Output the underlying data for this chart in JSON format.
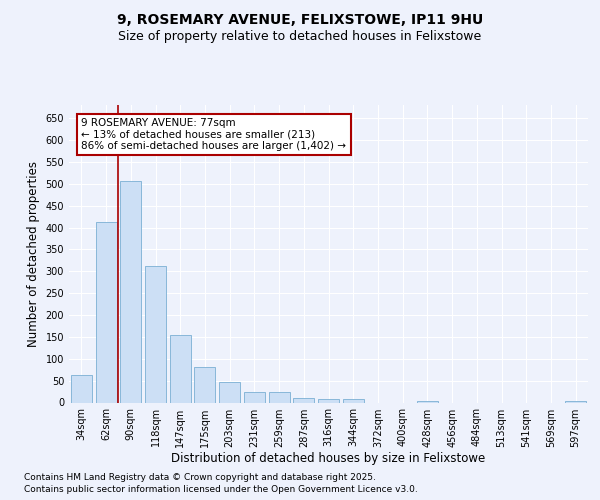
{
  "title": "9, ROSEMARY AVENUE, FELIXSTOWE, IP11 9HU",
  "subtitle": "Size of property relative to detached houses in Felixstowe",
  "xlabel": "Distribution of detached houses by size in Felixstowe",
  "ylabel": "Number of detached properties",
  "categories": [
    "34sqm",
    "62sqm",
    "90sqm",
    "118sqm",
    "147sqm",
    "175sqm",
    "203sqm",
    "231sqm",
    "259sqm",
    "287sqm",
    "316sqm",
    "344sqm",
    "372sqm",
    "400sqm",
    "428sqm",
    "456sqm",
    "484sqm",
    "513sqm",
    "541sqm",
    "569sqm",
    "597sqm"
  ],
  "values": [
    62,
    413,
    507,
    312,
    155,
    82,
    46,
    23,
    24,
    11,
    8,
    7,
    0,
    0,
    4,
    0,
    0,
    0,
    0,
    0,
    4
  ],
  "bar_color": "#ccdff5",
  "bar_edge_color": "#7aafd4",
  "vline_color": "#aa0000",
  "vline_x": 1.5,
  "annotation_text": "9 ROSEMARY AVENUE: 77sqm\n← 13% of detached houses are smaller (213)\n86% of semi-detached houses are larger (1,402) →",
  "annotation_box_color": "#ffffff",
  "annotation_box_edge": "#aa0000",
  "ylim": [
    0,
    680
  ],
  "yticks": [
    0,
    50,
    100,
    150,
    200,
    250,
    300,
    350,
    400,
    450,
    500,
    550,
    600,
    650
  ],
  "bg_color": "#eef2fc",
  "plot_bg": "#eef2fc",
  "grid_color": "#ffffff",
  "footer_line1": "Contains HM Land Registry data © Crown copyright and database right 2025.",
  "footer_line2": "Contains public sector information licensed under the Open Government Licence v3.0.",
  "title_fontsize": 10,
  "subtitle_fontsize": 9,
  "label_fontsize": 8.5,
  "tick_fontsize": 7,
  "annot_fontsize": 7.5,
  "footer_fontsize": 6.5
}
